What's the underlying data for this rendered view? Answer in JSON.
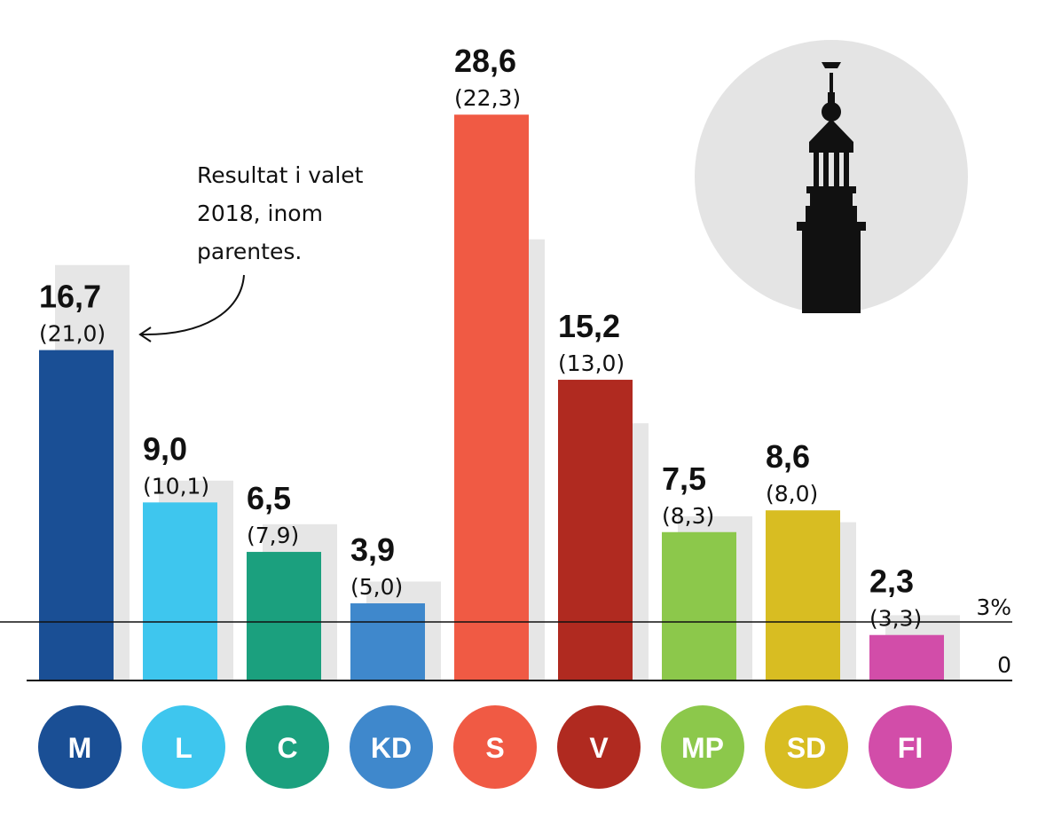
{
  "chart_data": {
    "type": "bar",
    "categories": [
      "M",
      "L",
      "C",
      "KD",
      "S",
      "V",
      "MP",
      "SD",
      "FI"
    ],
    "series": [
      {
        "values": [
          16.7,
          9.0,
          6.5,
          3.9,
          28.6,
          15.2,
          7.5,
          8.6,
          2.3
        ]
      },
      {
        "values": [
          21.0,
          10.1,
          7.9,
          5.0,
          22.3,
          13.0,
          8.3,
          8.0,
          3.3
        ]
      }
    ],
    "value_labels": [
      "16,7",
      "9,0",
      "6,5",
      "3,9",
      "28,6",
      "15,2",
      "7,5",
      "8,6",
      "2,3"
    ],
    "prev_labels": [
      "(21,0)",
      "(10,1)",
      "(7,9)",
      "(5,0)",
      "(22,3)",
      "(13,0)",
      "(8,3)",
      "(8,0)",
      "(3,3)"
    ],
    "colors": [
      "#1a4f95",
      "#3ec6ee",
      "#1ba07e",
      "#3f88cc",
      "#f05a44",
      "#b02a20",
      "#8cc84b",
      "#d8bd22",
      "#d24da9"
    ],
    "previous_color": "#e6e6e6",
    "ylim": [
      0,
      30
    ],
    "reference_line": {
      "value": 3,
      "label": "3%"
    },
    "zero_label": "0",
    "annotation": [
      "Resultat i valet",
      "2018, inom",
      "parentes."
    ],
    "xlabel": "",
    "ylabel": ""
  }
}
